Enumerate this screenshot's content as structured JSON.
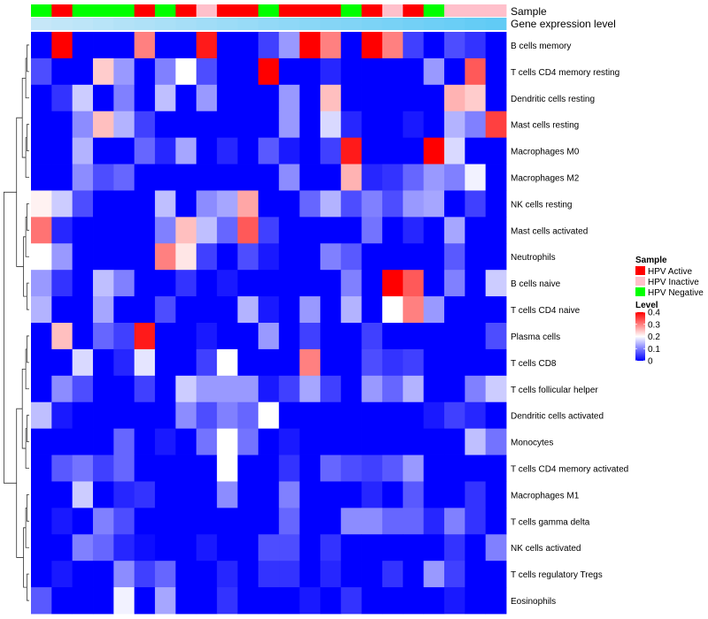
{
  "chart_data": {
    "type": "heatmap",
    "annotation_labels": {
      "sample": "Sample",
      "gene": "Gene expression level"
    },
    "sample_colors": {
      "active": "#FF0000",
      "inactive": "#FFC0CB",
      "negative": "#00FF00"
    },
    "sample_annotation": [
      "negative",
      "active",
      "negative",
      "negative",
      "negative",
      "active",
      "negative",
      "active",
      "inactive",
      "active",
      "active",
      "negative",
      "active",
      "active",
      "active",
      "negative",
      "active",
      "inactive",
      "active",
      "negative",
      "inactive",
      "inactive",
      "inactive"
    ],
    "gene_expression": [
      0.02,
      0.06,
      0.1,
      0.14,
      0.18,
      0.22,
      0.26,
      0.3,
      0.34,
      0.38,
      0.42,
      0.46,
      0.5,
      0.54,
      0.58,
      0.62,
      0.66,
      0.7,
      0.74,
      0.78,
      0.82,
      0.86,
      0.9
    ],
    "gene_colors": {
      "low": "#C8E8F8",
      "high": "#55C8F5"
    },
    "rows": [
      "B cells memory",
      "T cells CD4 memory resting",
      "Dendritic cells resting",
      "Mast cells resting",
      "Macrophages M0",
      "Macrophages M2",
      "NK cells resting",
      "Mast cells activated",
      "Neutrophils",
      "B cells naive",
      "T cells CD4 naive",
      "Plasma cells",
      "T cells CD8",
      "T cells follicular helper",
      "Dendritic cells activated",
      "Monocytes",
      "T cells CD4 memory activated",
      "Macrophages M1",
      "T cells gamma delta",
      "NK cells activated",
      "T cells regulatory  Tregs",
      "Eosinophils"
    ],
    "values": [
      [
        0.0,
        0.4,
        0.0,
        0.0,
        0.0,
        0.3,
        0.0,
        0.0,
        0.38,
        0.0,
        0.0,
        0.05,
        0.12,
        0.4,
        0.3,
        0.0,
        0.4,
        0.3,
        0.05,
        0.0,
        0.06,
        0.04,
        0.0
      ],
      [
        0.06,
        0.0,
        0.0,
        0.24,
        0.12,
        0.0,
        0.1,
        0.2,
        0.06,
        0.0,
        0.0,
        0.4,
        0.0,
        0.0,
        0.03,
        0.0,
        0.0,
        0.0,
        0.0,
        0.12,
        0.0,
        0.33,
        0.0
      ],
      [
        0.0,
        0.04,
        0.16,
        0.0,
        0.1,
        0.0,
        0.15,
        0.0,
        0.12,
        0.0,
        0.0,
        0.0,
        0.12,
        0.0,
        0.25,
        0.0,
        0.0,
        0.0,
        0.0,
        0.0,
        0.26,
        0.24,
        0.0
      ],
      [
        0.0,
        0.0,
        0.11,
        0.25,
        0.14,
        0.05,
        0.0,
        0.0,
        0.0,
        0.0,
        0.0,
        0.0,
        0.12,
        0.0,
        0.17,
        0.03,
        0.0,
        0.0,
        0.02,
        0.0,
        0.14,
        0.1,
        0.35
      ],
      [
        0.0,
        0.0,
        0.14,
        0.0,
        0.0,
        0.08,
        0.03,
        0.13,
        0.0,
        0.03,
        0.0,
        0.07,
        0.02,
        0.0,
        0.05,
        0.38,
        0.0,
        0.0,
        0.0,
        0.4,
        0.17,
        0.0,
        0.0
      ],
      [
        0.0,
        0.0,
        0.11,
        0.06,
        0.08,
        0.0,
        0.0,
        0.0,
        0.0,
        0.0,
        0.0,
        0.0,
        0.11,
        0.0,
        0.0,
        0.26,
        0.03,
        0.04,
        0.08,
        0.12,
        0.1,
        0.19,
        0.0
      ],
      [
        0.21,
        0.16,
        0.06,
        0.0,
        0.0,
        0.0,
        0.15,
        0.0,
        0.11,
        0.13,
        0.27,
        0.0,
        0.0,
        0.08,
        0.14,
        0.06,
        0.1,
        0.06,
        0.12,
        0.13,
        0.0,
        0.05,
        0.0
      ],
      [
        0.31,
        0.03,
        0.0,
        0.0,
        0.0,
        0.0,
        0.1,
        0.25,
        0.15,
        0.08,
        0.33,
        0.05,
        0.0,
        0.0,
        0.0,
        0.0,
        0.09,
        0.0,
        0.03,
        0.0,
        0.13,
        0.0,
        0.0
      ],
      [
        0.2,
        0.12,
        0.0,
        0.0,
        0.0,
        0.0,
        0.3,
        0.22,
        0.05,
        0.0,
        0.06,
        0.02,
        0.0,
        0.0,
        0.1,
        0.07,
        0.0,
        0.0,
        0.0,
        0.0,
        0.07,
        0.0,
        0.0
      ],
      [
        0.12,
        0.04,
        0.0,
        0.15,
        0.1,
        0.0,
        0.0,
        0.04,
        0.0,
        0.02,
        0.0,
        0.0,
        0.0,
        0.0,
        0.0,
        0.1,
        0.0,
        0.4,
        0.33,
        0.0,
        0.1,
        0.0,
        0.16
      ],
      [
        0.14,
        0.0,
        0.0,
        0.13,
        0.0,
        0.0,
        0.06,
        0.0,
        0.0,
        0.0,
        0.14,
        0.02,
        0.0,
        0.12,
        0.0,
        0.14,
        0.0,
        0.2,
        0.3,
        0.12,
        0.0,
        0.0,
        0.0
      ],
      [
        0.0,
        0.25,
        0.0,
        0.08,
        0.05,
        0.38,
        0.0,
        0.0,
        0.02,
        0.0,
        0.0,
        0.12,
        0.0,
        0.05,
        0.0,
        0.0,
        0.05,
        0.0,
        0.0,
        0.0,
        0.0,
        0.0,
        0.06
      ],
      [
        0.0,
        0.0,
        0.17,
        0.0,
        0.03,
        0.18,
        0.0,
        0.0,
        0.05,
        0.2,
        0.0,
        0.0,
        0.0,
        0.3,
        0.0,
        0.0,
        0.06,
        0.04,
        0.05,
        0.0,
        0.0,
        0.0,
        0.0
      ],
      [
        0.0,
        0.11,
        0.06,
        0.0,
        0.0,
        0.05,
        0.0,
        0.16,
        0.12,
        0.12,
        0.12,
        0.02,
        0.05,
        0.13,
        0.05,
        0.0,
        0.12,
        0.08,
        0.14,
        0.0,
        0.0,
        0.1,
        0.16
      ],
      [
        0.15,
        0.02,
        0.0,
        0.0,
        0.0,
        0.0,
        0.0,
        0.11,
        0.06,
        0.1,
        0.08,
        0.2,
        0.0,
        0.0,
        0.0,
        0.0,
        0.0,
        0.0,
        0.0,
        0.02,
        0.05,
        0.03,
        0.0
      ],
      [
        0.0,
        0.0,
        0.0,
        0.0,
        0.08,
        0.0,
        0.02,
        0.0,
        0.09,
        0.2,
        0.09,
        0.0,
        0.02,
        0.0,
        0.0,
        0.0,
        0.0,
        0.0,
        0.0,
        0.0,
        0.0,
        0.15,
        0.09
      ],
      [
        0.0,
        0.07,
        0.09,
        0.05,
        0.08,
        0.0,
        0.0,
        0.0,
        0.0,
        0.2,
        0.0,
        0.0,
        0.04,
        0.0,
        0.08,
        0.06,
        0.05,
        0.07,
        0.12,
        0.0,
        0.0,
        0.0,
        0.0
      ],
      [
        0.0,
        0.0,
        0.16,
        0.0,
        0.03,
        0.04,
        0.0,
        0.0,
        0.0,
        0.11,
        0.0,
        0.0,
        0.1,
        0.0,
        0.0,
        0.0,
        0.03,
        0.0,
        0.07,
        0.0,
        0.0,
        0.04,
        0.0
      ],
      [
        0.0,
        0.02,
        0.0,
        0.1,
        0.06,
        0.0,
        0.0,
        0.0,
        0.0,
        0.0,
        0.0,
        0.0,
        0.08,
        0.0,
        0.0,
        0.11,
        0.11,
        0.08,
        0.08,
        0.03,
        0.1,
        0.04,
        0.0
      ],
      [
        0.0,
        0.0,
        0.1,
        0.08,
        0.03,
        0.01,
        0.0,
        0.0,
        0.02,
        0.0,
        0.0,
        0.06,
        0.06,
        0.0,
        0.04,
        0.0,
        0.0,
        0.0,
        0.0,
        0.0,
        0.04,
        0.0,
        0.1
      ],
      [
        0.0,
        0.02,
        0.0,
        0.0,
        0.11,
        0.05,
        0.08,
        0.0,
        0.0,
        0.03,
        0.0,
        0.04,
        0.04,
        0.0,
        0.03,
        0.0,
        0.0,
        0.04,
        0.0,
        0.12,
        0.05,
        0.0,
        0.0
      ],
      [
        0.07,
        0.0,
        0.0,
        0.0,
        0.19,
        0.0,
        0.13,
        0.0,
        0.0,
        0.04,
        0.0,
        0.0,
        0.0,
        0.02,
        0.0,
        0.04,
        0.0,
        0.0,
        0.0,
        0.0,
        0.02,
        0.0,
        0.0
      ]
    ],
    "color_scale": {
      "min": 0,
      "mid": 0.2,
      "max": 0.4,
      "low": "#0000FF",
      "mid_color": "#FFFFFF",
      "high": "#FF0000"
    },
    "legend": {
      "sample_title": "Sample",
      "sample_items": [
        {
          "label": "HPV Active",
          "key": "active"
        },
        {
          "label": "HPV Inactive",
          "key": "inactive"
        },
        {
          "label": "HPV Negative",
          "key": "negative"
        }
      ],
      "level_title": "Level",
      "level_ticks": [
        {
          "label": "0.4",
          "value": 0.4
        },
        {
          "label": "0.3",
          "value": 0.3
        },
        {
          "label": "0.2",
          "value": 0.2
        },
        {
          "label": "0.1",
          "value": 0.1
        },
        {
          "label": "0",
          "value": 0
        }
      ],
      "placement": "right"
    }
  }
}
